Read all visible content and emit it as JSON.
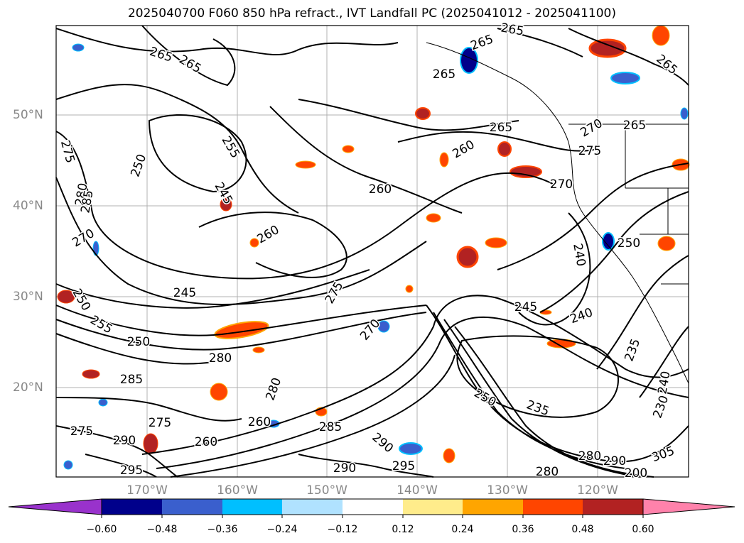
{
  "title": "2025040700 F060 850 hPa refract., IVT Landfall PC (2025041012 - 2025041100)",
  "axes": {
    "lat_labels": [
      "50°N",
      "40°N",
      "30°N",
      "20°N"
    ],
    "lon_labels": [
      "170°W",
      "160°W",
      "150°W",
      "140°W",
      "130°W",
      "120°W"
    ]
  },
  "contour_labels": [
    "265",
    "265",
    "265",
    "265",
    "265",
    "265",
    "265",
    "275",
    "270",
    "280",
    "250",
    "255",
    "245",
    "260",
    "260",
    "260",
    "275",
    "270",
    "285",
    "270",
    "250",
    "255",
    "250",
    "245",
    "280",
    "285",
    "275",
    "290",
    "295",
    "290",
    "275",
    "280",
    "260",
    "265",
    "285",
    "290",
    "295",
    "270",
    "260",
    "240",
    "245",
    "240",
    "235",
    "250",
    "235",
    "230",
    "240",
    "280",
    "280",
    "290",
    "200",
    "305",
    "275",
    "250"
  ],
  "colorbar": {
    "ticks": [
      "−0.60",
      "−0.48",
      "−0.36",
      "−0.24",
      "−0.12",
      "0.12",
      "0.24",
      "0.36",
      "0.48",
      "0.60"
    ],
    "colors": [
      "#9932cc",
      "#00008b",
      "#3a5fcd",
      "#00bfff",
      "#b0e2ff",
      "#ffffff",
      "#ffec8b",
      "#ffa500",
      "#ff4500",
      "#b22222",
      "#ff82ab"
    ]
  },
  "colors": {
    "axis_label": "#888888",
    "grid": "#b0b0b0",
    "contour": "#000000"
  }
}
